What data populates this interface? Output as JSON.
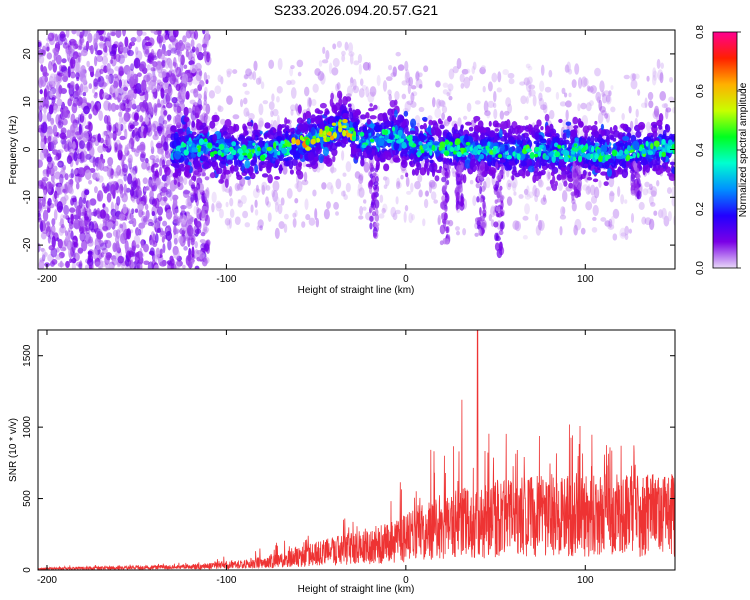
{
  "title": "S233.2026.094.20.57.G21",
  "chart_data": [
    {
      "type": "heatmap",
      "xlabel": "Height of straight line (km)",
      "ylabel": "Frequency (Hz)",
      "xlim": [
        -205,
        150
      ],
      "ylim": [
        -25,
        25
      ],
      "xticks": [
        -200,
        -100,
        0,
        100
      ],
      "yticks": [
        -20,
        -10,
        0,
        10,
        20
      ],
      "colorbar": {
        "label": "Normalized spectral amplitude",
        "range": [
          0.0,
          0.8
        ],
        "ticks": [
          "0.0",
          "0.2",
          "0.4",
          "0.6",
          "0.8"
        ],
        "colormap": [
          "#e8d8f8",
          "#7a00e6",
          "#2200ff",
          "#0090ff",
          "#00ffd0",
          "#00ff20",
          "#c8ff00",
          "#ffb000",
          "#ff2000",
          "#ff0090"
        ]
      },
      "ridge": {
        "x": [
          -130,
          -110,
          -90,
          -70,
          -55,
          -45,
          -35,
          -25,
          -15,
          -5,
          5,
          20,
          40,
          60,
          80,
          100,
          115,
          130,
          145
        ],
        "y": [
          0,
          0.5,
          -0.5,
          0,
          1.5,
          3,
          5,
          2,
          2,
          3,
          0.5,
          0.5,
          0,
          -0.5,
          -0.5,
          -0.5,
          -1,
          0,
          0.5
        ]
      },
      "grid": false
    },
    {
      "type": "line",
      "xlabel": "Height of straight line (km)",
      "ylabel": "SNR (10 * v/v)",
      "xlim": [
        -205,
        150
      ],
      "ylim": [
        0,
        1680
      ],
      "xticks": [
        -200,
        -100,
        0,
        100
      ],
      "yticks": [
        0,
        500,
        1000,
        1500
      ],
      "series": [
        {
          "color": "#ee3333",
          "envelope_x": [
            -205,
            -150,
            -120,
            -90,
            -70,
            -50,
            -30,
            -10,
            0,
            10,
            30,
            50,
            70,
            100,
            130,
            150
          ],
          "envelope_median": [
            10,
            20,
            25,
            50,
            80,
            130,
            180,
            220,
            260,
            330,
            380,
            420,
            440,
            460,
            450,
            450
          ],
          "envelope_peak": [
            30,
            40,
            60,
            120,
            200,
            320,
            380,
            450,
            700,
            900,
            1300,
            1100,
            1050,
            1050,
            900,
            700
          ],
          "max": {
            "x": 40,
            "y": 1680
          }
        }
      ],
      "grid": false
    }
  ]
}
